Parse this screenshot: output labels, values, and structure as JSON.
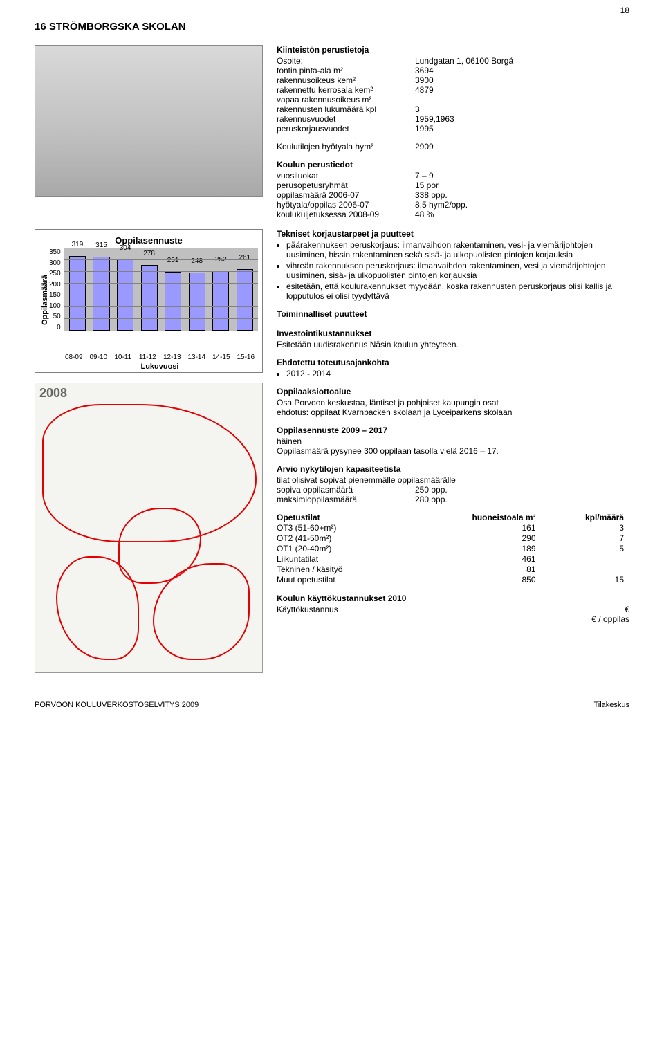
{
  "pageNumber": "18",
  "title": "16  STRÖMBORGSKA SKOLAN",
  "basicInfo": {
    "heading": "Kiinteistön perustietoja",
    "rows": [
      {
        "k": "Osoite:",
        "v": "Lundgatan 1, 06100 Borgå"
      },
      {
        "k": "tontin pinta-ala m²",
        "v": "3694"
      },
      {
        "k": "rakennusoikeus kem²",
        "v": "3900"
      },
      {
        "k": "rakennettu kerrosala kem²",
        "v": "4879"
      },
      {
        "k": "vapaa rakennusoikeus m²",
        "v": ""
      },
      {
        "k": "rakennusten lukumäärä kpl",
        "v": "3"
      },
      {
        "k": "rakennusvuodet",
        "v": "1959,1963"
      },
      {
        "k": "peruskorjausvuodet",
        "v": "1995"
      }
    ],
    "areaRow": {
      "k": "Koulutilojen hyötyala hym²",
      "v": "2909"
    }
  },
  "schoolInfo": {
    "heading": "Koulun perustiedot",
    "rows": [
      {
        "k": "vuosiluokat",
        "v": "7 – 9"
      },
      {
        "k": "perusopetusryhmät",
        "v": "15 por"
      },
      {
        "k": "oppilasmäärä 2006-07",
        "v": "338 opp."
      },
      {
        "k": "hyötyala/oppilas 2006-07",
        "v": "8,5 hym2/opp."
      },
      {
        "k": "koulukuljetuksessa 2008-09",
        "v": "48 %"
      }
    ]
  },
  "chart": {
    "type": "bar",
    "title": "Oppilasennuste",
    "categories": [
      "08-09",
      "09-10",
      "10-11",
      "11-12",
      "12-13",
      "13-14",
      "14-15",
      "15-16"
    ],
    "values": [
      319,
      315,
      304,
      278,
      251,
      248,
      252,
      261
    ],
    "ylabel": "Oppilasmäärä",
    "xlabel": "Lukuvuosi",
    "ylim": [
      0,
      350
    ],
    "ytick_step": 50,
    "bar_color": "#9999ff",
    "bar_border": "#000000",
    "plot_bg": "#c0c0c0",
    "grid_color": "#808080",
    "title_fontsize": 13,
    "label_fontsize": 11,
    "tick_fontsize": 10
  },
  "map": {
    "year": "2008",
    "border_color": "#e20000",
    "bg_color": "#f4f4f0"
  },
  "technical": {
    "heading": "Tekniset korjaustarpeet ja puutteet",
    "items": [
      "päärakennuksen peruskorjaus: ilmanvaihdon rakentaminen, vesi- ja viemärijohtojen uusiminen, hissin rakentaminen sekä sisä- ja ulkopuolisten pintojen korjauksia",
      "vihreän rakennuksen peruskorjaus: ilmanvaihdon rakentaminen, vesi ja viemärijohtojen uusiminen, sisä- ja ulkopuolisten pintojen korjauksia",
      "esitetään, että koulurakennukset myydään, koska rakennusten peruskorjaus olisi kallis ja lopputulos ei olisi tyydyttävä"
    ]
  },
  "functionalHeading": "Toiminnalliset puutteet",
  "investment": {
    "heading": "Investointikustannukset",
    "text": "Esitetään uudisrakennus Näsin koulun yhteyteen."
  },
  "timeline": {
    "heading": "Ehdotettu toteutusajankohta",
    "item": "2012 - 2014"
  },
  "catchment": {
    "heading": "Oppilaaksiottoalue",
    "line1": "Osa Porvoon keskustaa, läntiset ja pohjoiset kaupungin osat",
    "line2": "ehdotus: oppilaat Kvarnbacken skolaan ja Lyceiparkens skolaan"
  },
  "forecast": {
    "heading": "Oppilasennuste 2009 – 2017",
    "line1": "häinen",
    "line2": "Oppilasmäärä pysynee 300 oppilaan tasolla vielä 2016 – 17."
  },
  "capacity": {
    "heading": "Arvio nykytilojen kapasiteetista",
    "line1": "tilat olisivat sopivat pienemmälle oppilasmäärälle",
    "rows": [
      {
        "k": "sopiva oppilasmäärä",
        "v": "250 opp."
      },
      {
        "k": "maksimioppilasmäärä",
        "v": "280 opp."
      }
    ]
  },
  "facilities": {
    "heading": "Opetustilat",
    "col2": "huoneistoala m²",
    "col3": "kpl/määrä",
    "rows": [
      {
        "k": "OT3 (51-60+m²)",
        "v1": "161",
        "v2": "3"
      },
      {
        "k": "OT2 (41-50m²)",
        "v1": "290",
        "v2": "7"
      },
      {
        "k": "OT1 (20-40m²)",
        "v1": "189",
        "v2": "5"
      },
      {
        "k": "Liikuntatilat",
        "v1": "461",
        "v2": ""
      },
      {
        "k": "Tekninen / käsityö",
        "v1": "81",
        "v2": ""
      },
      {
        "k": "Muut opetustilat",
        "v1": "850",
        "v2": "15"
      }
    ]
  },
  "costs": {
    "heading": "Koulun käyttökustannukset 2010",
    "rows": [
      {
        "k": "Käyttökustannus",
        "v": "€"
      },
      {
        "k": "",
        "v": "€ / oppilas"
      }
    ]
  },
  "footer": {
    "left": "PORVOON KOULUVERKOSTOSELVITYS 2009",
    "right": "Tilakeskus"
  }
}
